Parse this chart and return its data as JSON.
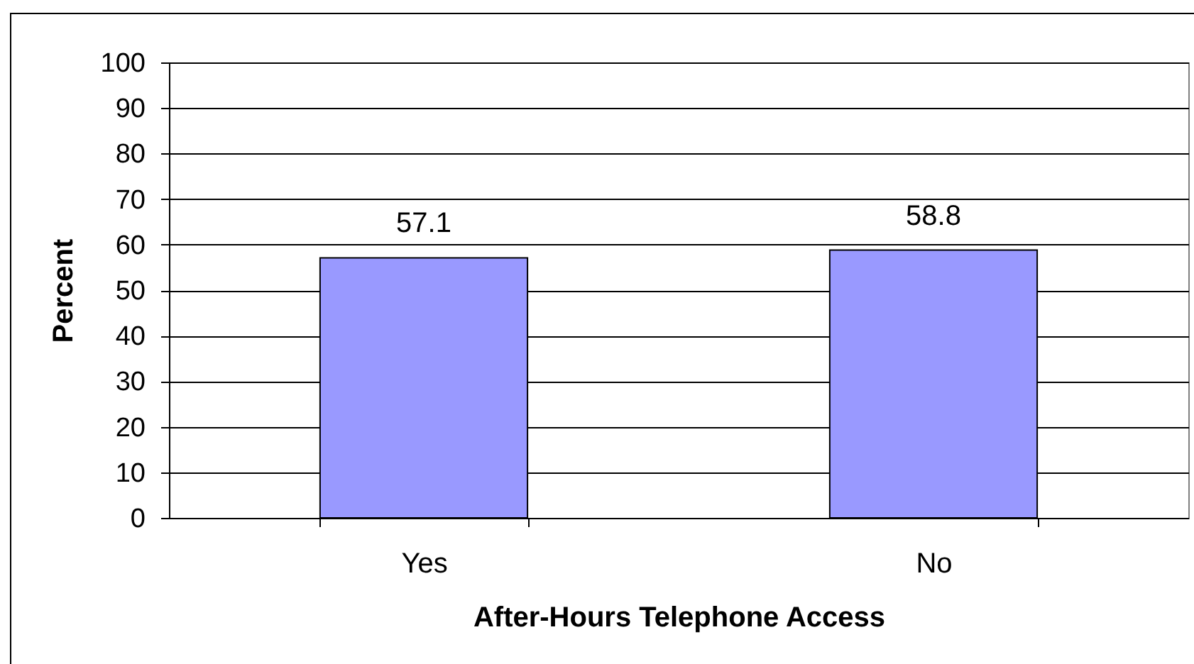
{
  "chart_data": {
    "type": "bar",
    "xlabel": "After-Hours Telephone Access",
    "ylabel": "Percent",
    "categories": [
      "Yes",
      "No"
    ],
    "values": [
      57.1,
      58.8
    ],
    "color": "#9999ff",
    "ylim": [
      0,
      100
    ],
    "yticks": [
      0,
      10,
      20,
      30,
      40,
      50,
      60,
      70,
      80,
      90,
      100
    ],
    "grid": "y",
    "data_labels": true
  }
}
